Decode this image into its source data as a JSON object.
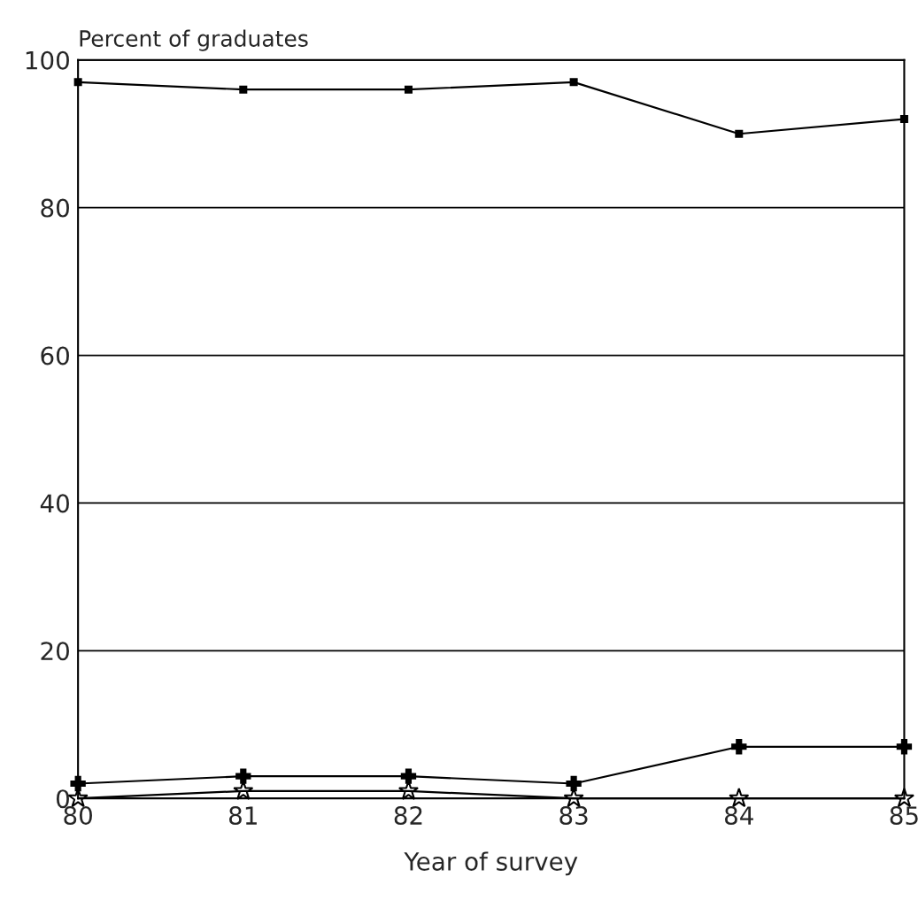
{
  "chart_data": {
    "type": "line",
    "ylabel": "Percent of graduates",
    "xlabel": "Year of survey",
    "x": [
      80,
      81,
      82,
      83,
      84,
      85
    ],
    "series": [
      {
        "color": "#000000",
        "marker": "square",
        "values": [
          97,
          96,
          96,
          97,
          90,
          92
        ]
      },
      {
        "color": "#000000",
        "marker": "cross",
        "values": [
          2,
          3,
          3,
          2,
          7,
          7
        ]
      },
      {
        "color": "#000000",
        "marker": "star",
        "values": [
          0,
          1,
          1,
          0,
          0,
          0
        ]
      }
    ],
    "xlim": [
      80,
      85
    ],
    "ylim": [
      0,
      100
    ],
    "xticks": [
      80,
      81,
      82,
      83,
      84,
      85
    ],
    "yticks": [
      0,
      20,
      40,
      60,
      80,
      100
    ],
    "grid": "y",
    "line_style": "solid"
  }
}
